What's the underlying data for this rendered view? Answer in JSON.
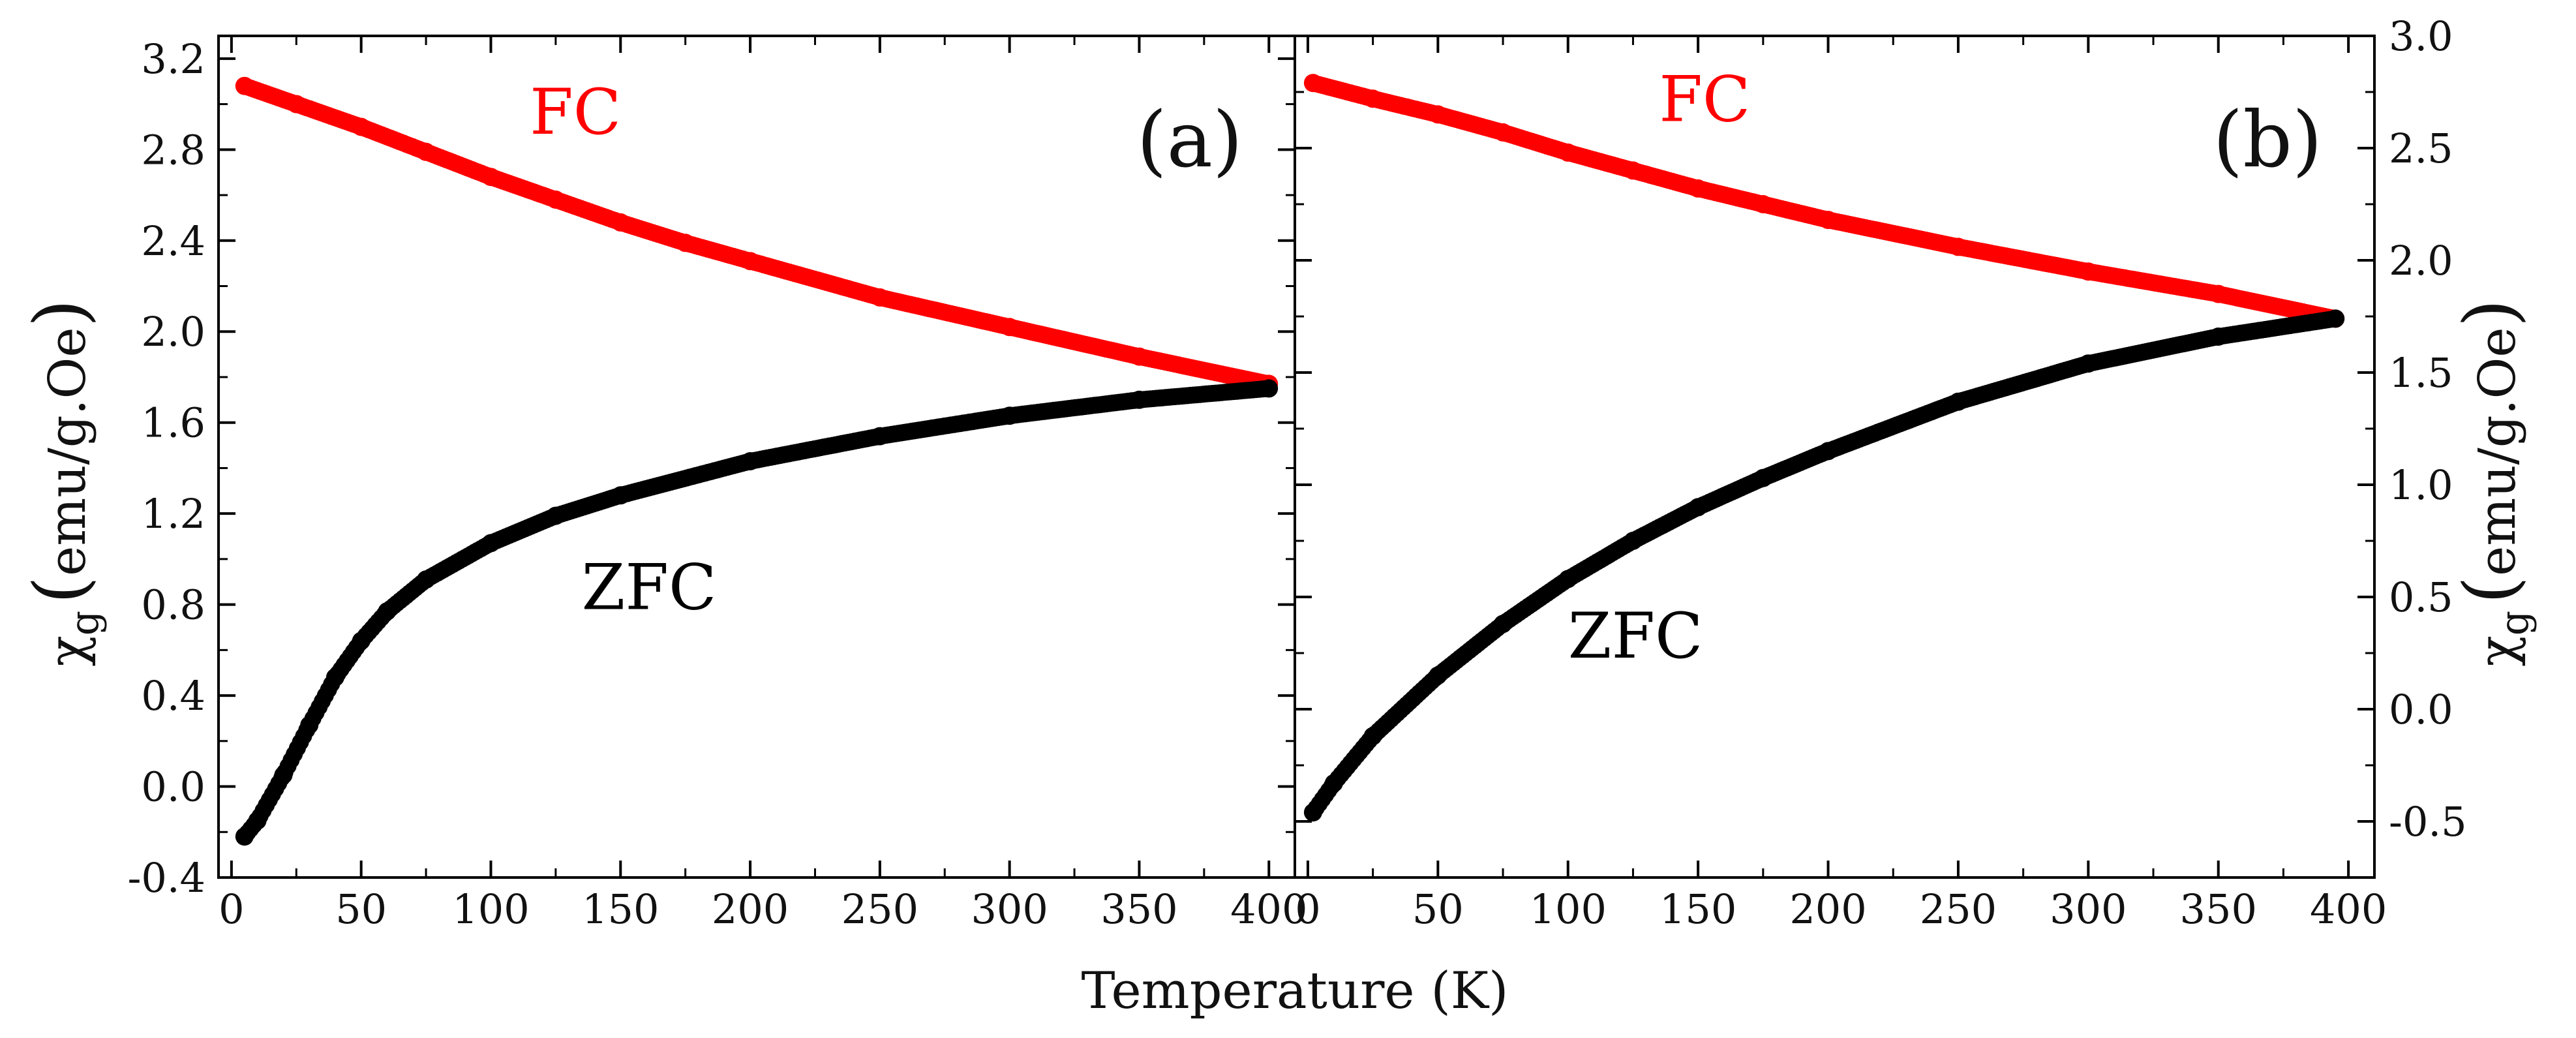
{
  "chart_data": [
    {
      "panel": "(a)",
      "type": "scatter",
      "xlabel": "Temperature (K)",
      "ylabel_symbol": "χ",
      "ylabel_subscript": "g",
      "ylabel_units": "emu/g.Oe",
      "xlim": [
        -5,
        410
      ],
      "ylim": [
        -0.4,
        3.3
      ],
      "xticks": [
        0,
        50,
        100,
        150,
        200,
        250,
        300,
        350,
        400
      ],
      "xtick_labels": [
        "0",
        "50",
        "100",
        "150",
        "200",
        "250",
        "300",
        "350",
        "400"
      ],
      "yticks": [
        -0.4,
        0.0,
        0.4,
        0.8,
        1.2,
        1.6,
        2.0,
        2.4,
        2.8,
        3.2
      ],
      "ytick_labels": [
        "-0.4",
        "0.0",
        "0.4",
        "0.8",
        "1.2",
        "1.6",
        "2.0",
        "2.4",
        "2.8",
        "3.2"
      ],
      "series": [
        {
          "name": "FC",
          "color": "#ff0000",
          "x": [
            5,
            25,
            50,
            75,
            100,
            125,
            150,
            175,
            200,
            250,
            300,
            350,
            400
          ],
          "y": [
            3.08,
            3.0,
            2.9,
            2.79,
            2.68,
            2.58,
            2.48,
            2.39,
            2.31,
            2.15,
            2.02,
            1.89,
            1.77
          ]
        },
        {
          "name": "ZFC",
          "color": "#000000",
          "x": [
            5,
            10,
            20,
            30,
            40,
            50,
            60,
            75,
            100,
            125,
            150,
            200,
            250,
            300,
            350,
            400
          ],
          "y": [
            -0.22,
            -0.15,
            0.05,
            0.27,
            0.48,
            0.64,
            0.77,
            0.91,
            1.07,
            1.19,
            1.28,
            1.43,
            1.54,
            1.63,
            1.7,
            1.75
          ]
        }
      ]
    },
    {
      "panel": "(b)",
      "type": "scatter",
      "xlabel": "Temperature (K)",
      "ylabel_symbol": "χ",
      "ylabel_subscript": "g",
      "ylabel_units": "emu/g.Oe",
      "xlim": [
        -5,
        410
      ],
      "ylim": [
        -0.75,
        3.0
      ],
      "xticks": [
        0,
        50,
        100,
        150,
        200,
        250,
        300,
        350,
        400
      ],
      "xtick_labels": [
        "0",
        "50",
        "100",
        "150",
        "200",
        "250",
        "300",
        "350",
        "400"
      ],
      "yticks": [
        -0.5,
        0.0,
        0.5,
        1.0,
        1.5,
        2.0,
        2.5,
        3.0
      ],
      "ytick_labels": [
        "-0.5",
        "0.0",
        "0.5",
        "1.0",
        "1.5",
        "2.0",
        "2.5",
        "3.0"
      ],
      "series": [
        {
          "name": "FC",
          "color": "#ff0000",
          "x": [
            2,
            25,
            50,
            75,
            100,
            125,
            150,
            175,
            200,
            250,
            300,
            350,
            395
          ],
          "y": [
            2.79,
            2.72,
            2.65,
            2.57,
            2.48,
            2.4,
            2.32,
            2.25,
            2.18,
            2.06,
            1.95,
            1.85,
            1.74
          ]
        },
        {
          "name": "ZFC",
          "color": "#000000",
          "x": [
            2,
            10,
            25,
            50,
            75,
            100,
            125,
            150,
            175,
            200,
            250,
            300,
            350,
            395
          ],
          "y": [
            -0.46,
            -0.33,
            -0.12,
            0.15,
            0.38,
            0.58,
            0.75,
            0.9,
            1.03,
            1.15,
            1.37,
            1.54,
            1.66,
            1.74
          ]
        }
      ]
    }
  ]
}
